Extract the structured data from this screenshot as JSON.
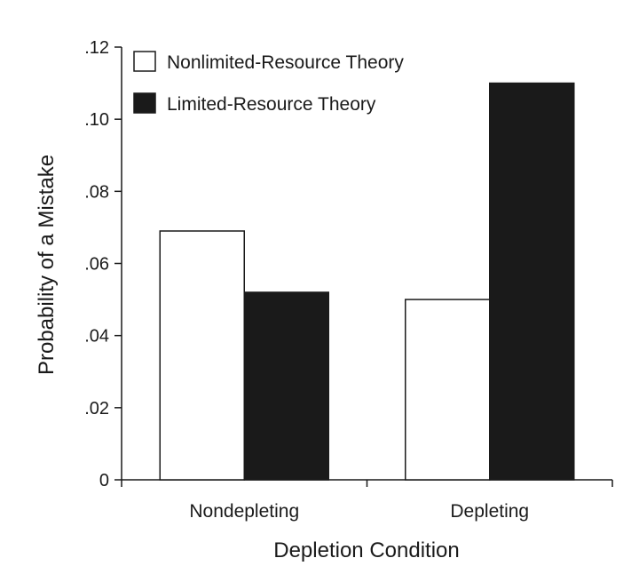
{
  "chart_data": {
    "type": "bar",
    "title": "",
    "xlabel": "Depletion Condition",
    "ylabel": "Probability of a Mistake",
    "categories": [
      "Nondepleting",
      "Depleting"
    ],
    "series": [
      {
        "name": "Nonlimited-Resource Theory",
        "values": [
          0.069,
          0.05
        ],
        "color": "#ffffff"
      },
      {
        "name": "Limited-Resource Theory",
        "values": [
          0.052,
          0.11
        ],
        "color": "#1a1a1a"
      }
    ],
    "ylim": [
      0,
      0.12
    ],
    "yticks": [
      {
        "value": 0,
        "label": "0"
      },
      {
        "value": 0.02,
        "label": ".02"
      },
      {
        "value": 0.04,
        "label": ".04"
      },
      {
        "value": 0.06,
        "label": ".06"
      },
      {
        "value": 0.08,
        "label": ".08"
      },
      {
        "value": 0.1,
        "label": ".10"
      },
      {
        "value": 0.12,
        "label": ".12"
      }
    ],
    "legend_position": "top-left",
    "grid": false
  }
}
